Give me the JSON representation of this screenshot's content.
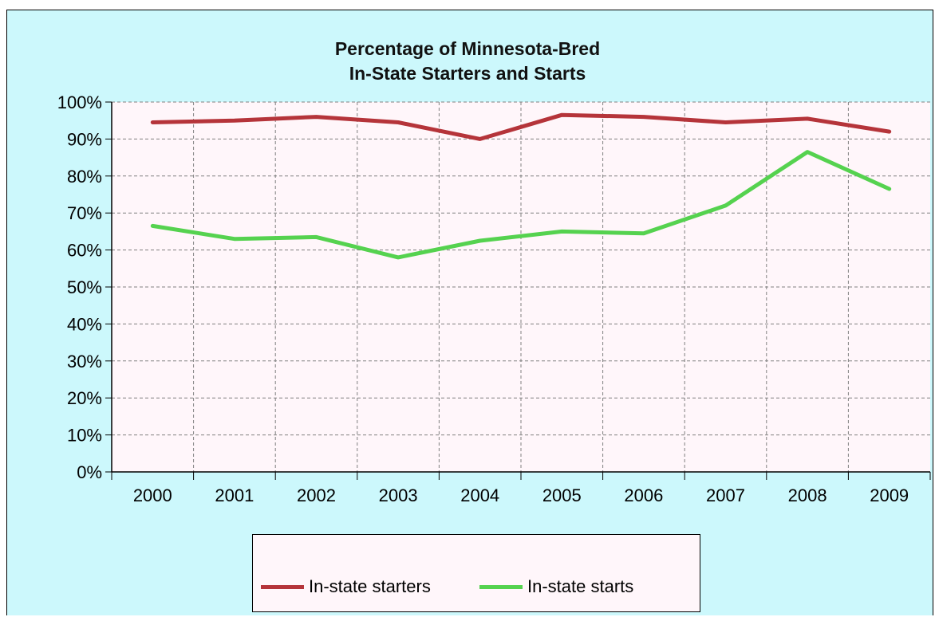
{
  "chart_data": {
    "type": "line",
    "title": "Percentage of Minnesota-Bred\nIn-State Starters and Starts",
    "title_lines": [
      "Percentage of Minnesota-Bred",
      "In-State Starters and Starts"
    ],
    "xlabel": "",
    "ylabel": "",
    "categories": [
      "2000",
      "2001",
      "2002",
      "2003",
      "2004",
      "2005",
      "2006",
      "2007",
      "2008",
      "2009"
    ],
    "y_ticks": [
      "0%",
      "10%",
      "20%",
      "30%",
      "40%",
      "50%",
      "60%",
      "70%",
      "80%",
      "90%",
      "100%"
    ],
    "ylim": [
      0,
      100
    ],
    "grid": true,
    "legend_position": "bottom",
    "series": [
      {
        "name": "In-state starters",
        "color": "#b5343a",
        "values": [
          94.5,
          95,
          96,
          94.5,
          90,
          96.5,
          96,
          94.5,
          95.5,
          92
        ]
      },
      {
        "name": "In-state starts",
        "color": "#55d24f",
        "values": [
          66.5,
          63,
          63.5,
          58,
          62.5,
          65,
          64.5,
          72,
          86.5,
          76.5
        ]
      }
    ]
  },
  "colors": {
    "background": "#ccf8fc",
    "plot_area": "#fff6fa",
    "gridline": "#808080"
  }
}
